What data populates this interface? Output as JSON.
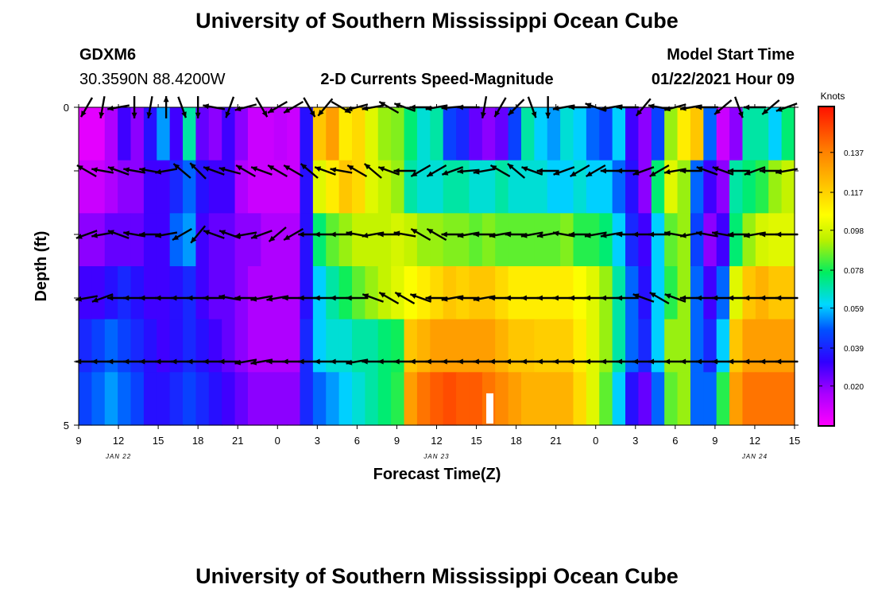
{
  "title_top": "University of Southern Mississippi Ocean Cube",
  "title_bottom": "University of Southern Mississippi Ocean Cube",
  "station": {
    "id": "GDXM6",
    "location": "30.3590N 88.4200W"
  },
  "model_start": {
    "label": "Model Start Time",
    "value": "01/22/2021 Hour 09"
  },
  "chart_data": {
    "type": "heatmap",
    "title": "2-D Currents Speed-Magnitude",
    "xlabel": "Forecast Time(Z)",
    "ylabel": "Depth (ft)",
    "x_tick_labels": [
      "9",
      "12",
      "15",
      "18",
      "21",
      "0",
      "3",
      "6",
      "9",
      "12",
      "15",
      "18",
      "21",
      "0",
      "3",
      "6",
      "9",
      "12",
      "15"
    ],
    "x_date_labels": [
      "JAN 22",
      "JAN 23",
      "JAN 24"
    ],
    "x_range_hours": [
      0,
      54
    ],
    "y_tick_labels": [
      "0",
      "5"
    ],
    "ylim": [
      5,
      0
    ],
    "depth_levels_ft": [
      0,
      1,
      2,
      3,
      4,
      5
    ],
    "colorbar": {
      "title": "Knots",
      "tick_labels": [
        "0.137",
        "0.117",
        "0.098",
        "0.078",
        "0.059",
        "0.039",
        "0.020"
      ],
      "min": 0.0,
      "max": 0.16
    },
    "speed_knots": [
      [
        0.005,
        0.005,
        0.015,
        0.03,
        0.02,
        0.035,
        0.055,
        0.03,
        0.07,
        0.025,
        0.02,
        0.03,
        0.02,
        0.01,
        0.01,
        0.012,
        0.01,
        0.035,
        0.12,
        0.13,
        0.11,
        0.115,
        0.1,
        0.09,
        0.088,
        0.075,
        0.065,
        0.07,
        0.045,
        0.04,
        0.025,
        0.02,
        0.025,
        0.045,
        0.07,
        0.06,
        0.055,
        0.065,
        0.06,
        0.05,
        0.045,
        0.06,
        0.03,
        0.02,
        0.045,
        0.09,
        0.11,
        0.12,
        0.05,
        0.01,
        0.02,
        0.07,
        0.07,
        0.06,
        0.075
      ],
      [
        0.01,
        0.01,
        0.015,
        0.02,
        0.02,
        0.03,
        0.03,
        0.04,
        0.05,
        0.035,
        0.03,
        0.03,
        0.015,
        0.01,
        0.01,
        0.01,
        0.01,
        0.035,
        0.1,
        0.11,
        0.12,
        0.115,
        0.1,
        0.095,
        0.09,
        0.07,
        0.065,
        0.065,
        0.07,
        0.07,
        0.065,
        0.065,
        0.07,
        0.065,
        0.065,
        0.065,
        0.06,
        0.06,
        0.065,
        0.06,
        0.06,
        0.05,
        0.035,
        0.02,
        0.075,
        0.1,
        0.09,
        0.05,
        0.03,
        0.02,
        0.07,
        0.075,
        0.08,
        0.09,
        0.095
      ],
      [
        0.02,
        0.02,
        0.025,
        0.025,
        0.025,
        0.03,
        0.03,
        0.05,
        0.055,
        0.03,
        0.025,
        0.025,
        0.02,
        0.02,
        0.015,
        0.015,
        0.015,
        0.035,
        0.075,
        0.085,
        0.09,
        0.095,
        0.095,
        0.095,
        0.098,
        0.095,
        0.09,
        0.09,
        0.088,
        0.088,
        0.085,
        0.088,
        0.085,
        0.085,
        0.085,
        0.085,
        0.085,
        0.088,
        0.08,
        0.08,
        0.075,
        0.06,
        0.04,
        0.03,
        0.06,
        0.085,
        0.09,
        0.045,
        0.02,
        0.03,
        0.075,
        0.09,
        0.098,
        0.1,
        0.1
      ],
      [
        0.03,
        0.03,
        0.035,
        0.04,
        0.035,
        0.03,
        0.03,
        0.035,
        0.04,
        0.03,
        0.025,
        0.025,
        0.02,
        0.015,
        0.015,
        0.015,
        0.015,
        0.035,
        0.06,
        0.07,
        0.078,
        0.085,
        0.09,
        0.095,
        0.1,
        0.105,
        0.11,
        0.115,
        0.12,
        0.117,
        0.12,
        0.12,
        0.115,
        0.11,
        0.11,
        0.11,
        0.11,
        0.11,
        0.105,
        0.1,
        0.09,
        0.07,
        0.05,
        0.035,
        0.06,
        0.08,
        0.09,
        0.05,
        0.03,
        0.05,
        0.1,
        0.12,
        0.125,
        0.12,
        0.12
      ],
      [
        0.04,
        0.045,
        0.05,
        0.045,
        0.04,
        0.035,
        0.03,
        0.035,
        0.04,
        0.035,
        0.03,
        0.025,
        0.02,
        0.015,
        0.015,
        0.015,
        0.015,
        0.04,
        0.06,
        0.065,
        0.065,
        0.07,
        0.07,
        0.075,
        0.078,
        0.12,
        0.125,
        0.13,
        0.13,
        0.13,
        0.13,
        0.13,
        0.125,
        0.12,
        0.12,
        0.118,
        0.118,
        0.118,
        0.11,
        0.1,
        0.09,
        0.07,
        0.05,
        0.04,
        0.06,
        0.09,
        0.09,
        0.05,
        0.04,
        0.06,
        0.12,
        0.13,
        0.13,
        0.13,
        0.13
      ],
      [
        0.045,
        0.05,
        0.055,
        0.05,
        0.045,
        0.035,
        0.035,
        0.04,
        0.045,
        0.04,
        0.035,
        0.03,
        0.025,
        0.02,
        0.02,
        0.02,
        0.02,
        0.04,
        0.05,
        0.055,
        0.06,
        0.065,
        0.07,
        0.075,
        0.08,
        0.13,
        0.14,
        0.145,
        0.148,
        0.145,
        0.145,
        0.14,
        0.135,
        0.13,
        0.125,
        0.125,
        0.125,
        0.125,
        0.115,
        0.1,
        0.085,
        0.06,
        0.035,
        0.025,
        0.05,
        0.085,
        0.09,
        0.05,
        0.05,
        0.08,
        0.13,
        0.14,
        0.14,
        0.14,
        0.14
      ]
    ],
    "vector_angles_deg": [
      [
        120,
        100,
        170,
        90,
        100,
        270,
        70,
        90,
        190,
        110,
        165,
        60,
        150,
        150,
        60,
        130,
        30,
        165,
        170,
        210,
        200,
        180,
        170,
        175,
        180,
        100,
        120,
        135,
        70,
        90,
        170,
        180,
        200,
        170,
        180,
        130,
        190,
        165,
        170,
        180,
        140,
        70,
        180,
        140,
        160
      ],
      [
        210,
        190,
        200,
        190,
        190,
        170,
        220,
        225,
        200,
        195,
        210,
        200,
        210,
        210,
        220,
        200,
        190,
        210,
        220,
        200,
        180,
        150,
        150,
        160,
        175,
        170,
        210,
        220,
        200,
        180,
        160,
        150,
        150,
        180,
        180,
        160,
        150,
        170,
        180,
        200,
        200,
        180,
        160,
        180,
        170
      ],
      [
        160,
        170,
        200,
        190,
        180,
        170,
        150,
        130,
        200,
        200,
        170,
        160,
        140,
        150,
        180,
        180,
        180,
        190,
        170,
        180,
        190,
        210,
        210,
        180,
        170,
        180,
        170,
        180,
        170,
        170,
        190,
        180,
        170,
        170,
        180,
        180,
        180,
        190,
        170,
        190,
        190,
        180,
        170,
        180,
        180
      ],
      [
        170,
        160,
        180,
        180,
        180,
        180,
        180,
        180,
        180,
        190,
        180,
        170,
        170,
        180,
        180,
        180,
        180,
        180,
        200,
        210,
        210,
        200,
        180,
        170,
        180,
        170,
        180,
        180,
        180,
        180,
        180,
        180,
        180,
        180,
        180,
        200,
        210,
        200,
        180,
        180,
        180,
        180,
        180,
        180,
        180
      ],
      [
        180,
        180,
        180,
        180,
        180,
        180,
        180,
        180,
        180,
        180,
        170,
        170,
        180,
        180,
        180,
        180,
        180,
        170,
        180,
        180,
        180,
        180,
        180,
        180,
        180,
        180,
        180,
        180,
        180,
        180,
        180,
        180,
        180,
        180,
        180,
        180,
        180,
        180,
        180,
        180,
        180,
        180,
        180,
        180,
        180
      ]
    ]
  }
}
